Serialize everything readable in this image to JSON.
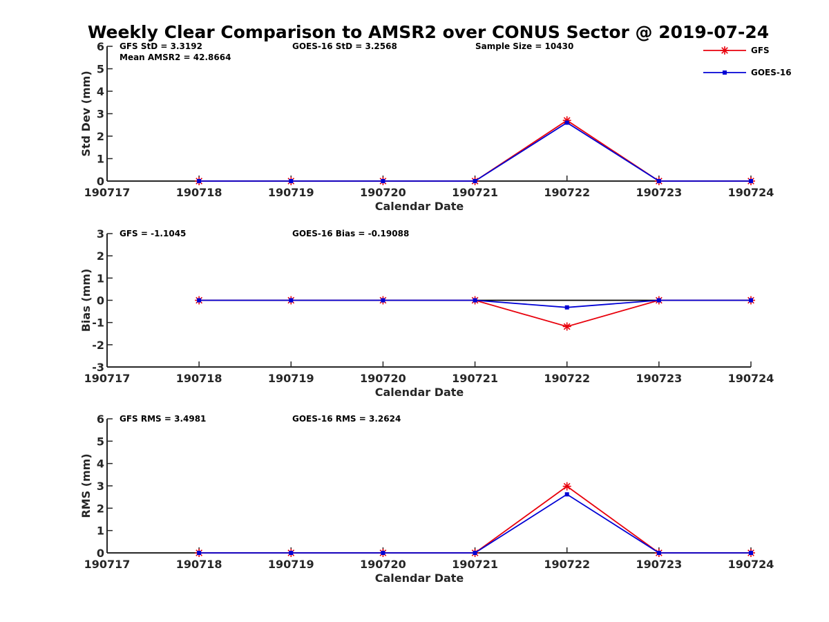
{
  "title": "Weekly Clear Comparison to AMSR2 over CONUS Sector @ 2019-07-24",
  "colors": {
    "GFS": "#e8000b",
    "GOES-16": "#0000d4",
    "reference": "#000000"
  },
  "legend": {
    "placement": "top-right",
    "items": [
      {
        "label": "GFS",
        "marker": "asterisk",
        "color": "#e8000b"
      },
      {
        "label": "GOES-16",
        "marker": "square",
        "color": "#0000d4"
      }
    ]
  },
  "chart_data": [
    {
      "type": "line",
      "xlabel": "Calendar Date",
      "ylabel": "Std Dev (mm)",
      "ylim": [
        0,
        6
      ],
      "yticks": [
        "0",
        "1",
        "2",
        "3",
        "4",
        "5",
        "6"
      ],
      "xticks": [
        "190717",
        "190718",
        "190719",
        "190720",
        "190721",
        "190722",
        "190723",
        "190724"
      ],
      "x": [
        "190718",
        "190719",
        "190720",
        "190721",
        "190722",
        "190723",
        "190724"
      ],
      "annotations": [
        {
          "text": "GFS StD = 3.3192",
          "row": 1,
          "col": 1
        },
        {
          "text": "GOES-16 StD = 3.2568",
          "row": 1,
          "col": 2
        },
        {
          "text": "Sample Size = 10430",
          "row": 1,
          "col": 3
        },
        {
          "text": "Mean AMSR2 = 42.8664",
          "row": 2,
          "col": 1
        }
      ],
      "series": [
        {
          "name": "GFS",
          "marker": "asterisk",
          "values": [
            0,
            0,
            0,
            0,
            2.7,
            0,
            0
          ]
        },
        {
          "name": "GOES-16",
          "marker": "square",
          "values": [
            0,
            0,
            0,
            0,
            2.6,
            0,
            0
          ]
        }
      ],
      "grid": false
    },
    {
      "type": "line",
      "xlabel": "Calendar Date",
      "ylabel": "Bias (mm)",
      "ylim": [
        -3,
        3
      ],
      "yticks": [
        "-3",
        "-2",
        "-1",
        "0",
        "1",
        "2",
        "3"
      ],
      "xticks": [
        "190717",
        "190718",
        "190719",
        "190720",
        "190721",
        "190722",
        "190723",
        "190724"
      ],
      "x": [
        "190718",
        "190719",
        "190720",
        "190721",
        "190722",
        "190723",
        "190724"
      ],
      "annotations": [
        {
          "text": "GFS = -1.1045",
          "row": 1,
          "col": 1
        },
        {
          "text": "GOES-16 Bias  = -0.19088",
          "row": 1,
          "col": 2
        }
      ],
      "zero_line": true,
      "series": [
        {
          "name": "GFS",
          "marker": "asterisk",
          "values": [
            0,
            0,
            0,
            0,
            -1.18,
            0,
            0
          ]
        },
        {
          "name": "GOES-16",
          "marker": "square",
          "values": [
            0,
            0,
            0,
            0,
            -0.32,
            0,
            0
          ]
        }
      ],
      "grid": false
    },
    {
      "type": "line",
      "xlabel": "Calendar Date",
      "ylabel": "RMS (mm)",
      "ylim": [
        0,
        6
      ],
      "yticks": [
        "0",
        "1",
        "2",
        "3",
        "4",
        "5",
        "6"
      ],
      "xticks": [
        "190717",
        "190718",
        "190719",
        "190720",
        "190721",
        "190722",
        "190723",
        "190724"
      ],
      "x": [
        "190718",
        "190719",
        "190720",
        "190721",
        "190722",
        "190723",
        "190724"
      ],
      "annotations": [
        {
          "text": "GFS RMS = 3.4981",
          "row": 1,
          "col": 1
        },
        {
          "text": "GOES-16 RMS = 3.2624",
          "row": 1,
          "col": 2
        }
      ],
      "series": [
        {
          "name": "GFS",
          "marker": "asterisk",
          "values": [
            0,
            0,
            0,
            0,
            2.98,
            0,
            0
          ]
        },
        {
          "name": "GOES-16",
          "marker": "square",
          "values": [
            0,
            0,
            0,
            0,
            2.62,
            0,
            0
          ]
        }
      ],
      "grid": false
    }
  ]
}
